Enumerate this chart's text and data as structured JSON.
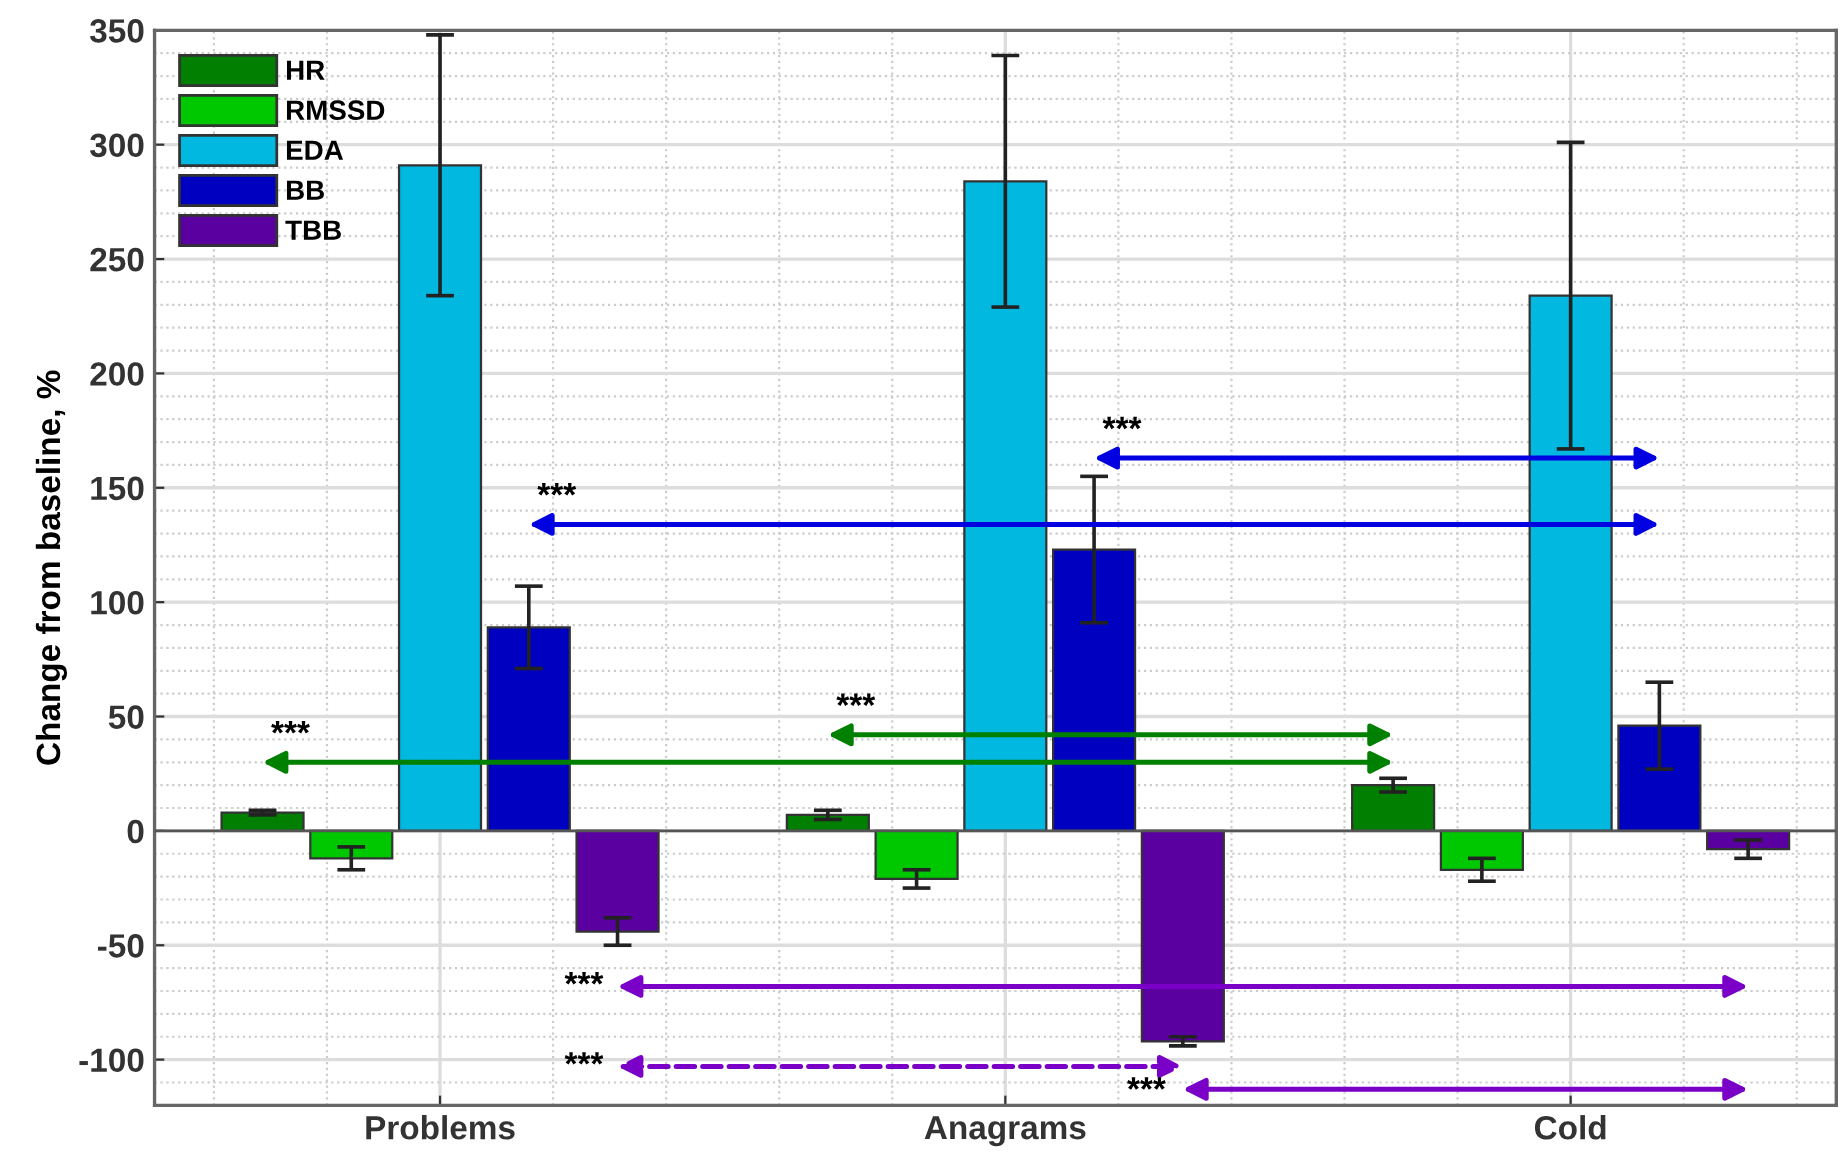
{
  "chart_data": {
    "type": "bar",
    "ylabel": "Change from baseline, %",
    "categories": [
      "Problems",
      "Anagrams",
      "Cold"
    ],
    "series": [
      {
        "name": "HR",
        "color": "#007f00",
        "values": [
          8,
          7,
          20
        ],
        "errors": [
          1,
          2,
          3
        ]
      },
      {
        "name": "RMSSD",
        "color": "#00c800",
        "values": [
          -12,
          -21,
          -17
        ],
        "errors": [
          5,
          4,
          5
        ]
      },
      {
        "name": "EDA",
        "color": "#00b8e0",
        "values": [
          291,
          284,
          234
        ],
        "errors": [
          57,
          55,
          67
        ]
      },
      {
        "name": "BB",
        "color": "#0000c0",
        "values": [
          89,
          123,
          46
        ],
        "errors": [
          18,
          32,
          19
        ]
      },
      {
        "name": "TBB",
        "color": "#5a00a0",
        "values": [
          -44,
          -92,
          -8
        ],
        "errors": [
          6,
          2,
          4
        ]
      }
    ],
    "ylim": [
      -120,
      350
    ],
    "yticks": [
      -100,
      -50,
      0,
      50,
      100,
      150,
      200,
      250,
      300,
      350
    ],
    "annotations": [
      "***",
      "***",
      "***",
      "***",
      "***",
      "***",
      "***"
    ],
    "grid": true,
    "legend": "top left"
  }
}
